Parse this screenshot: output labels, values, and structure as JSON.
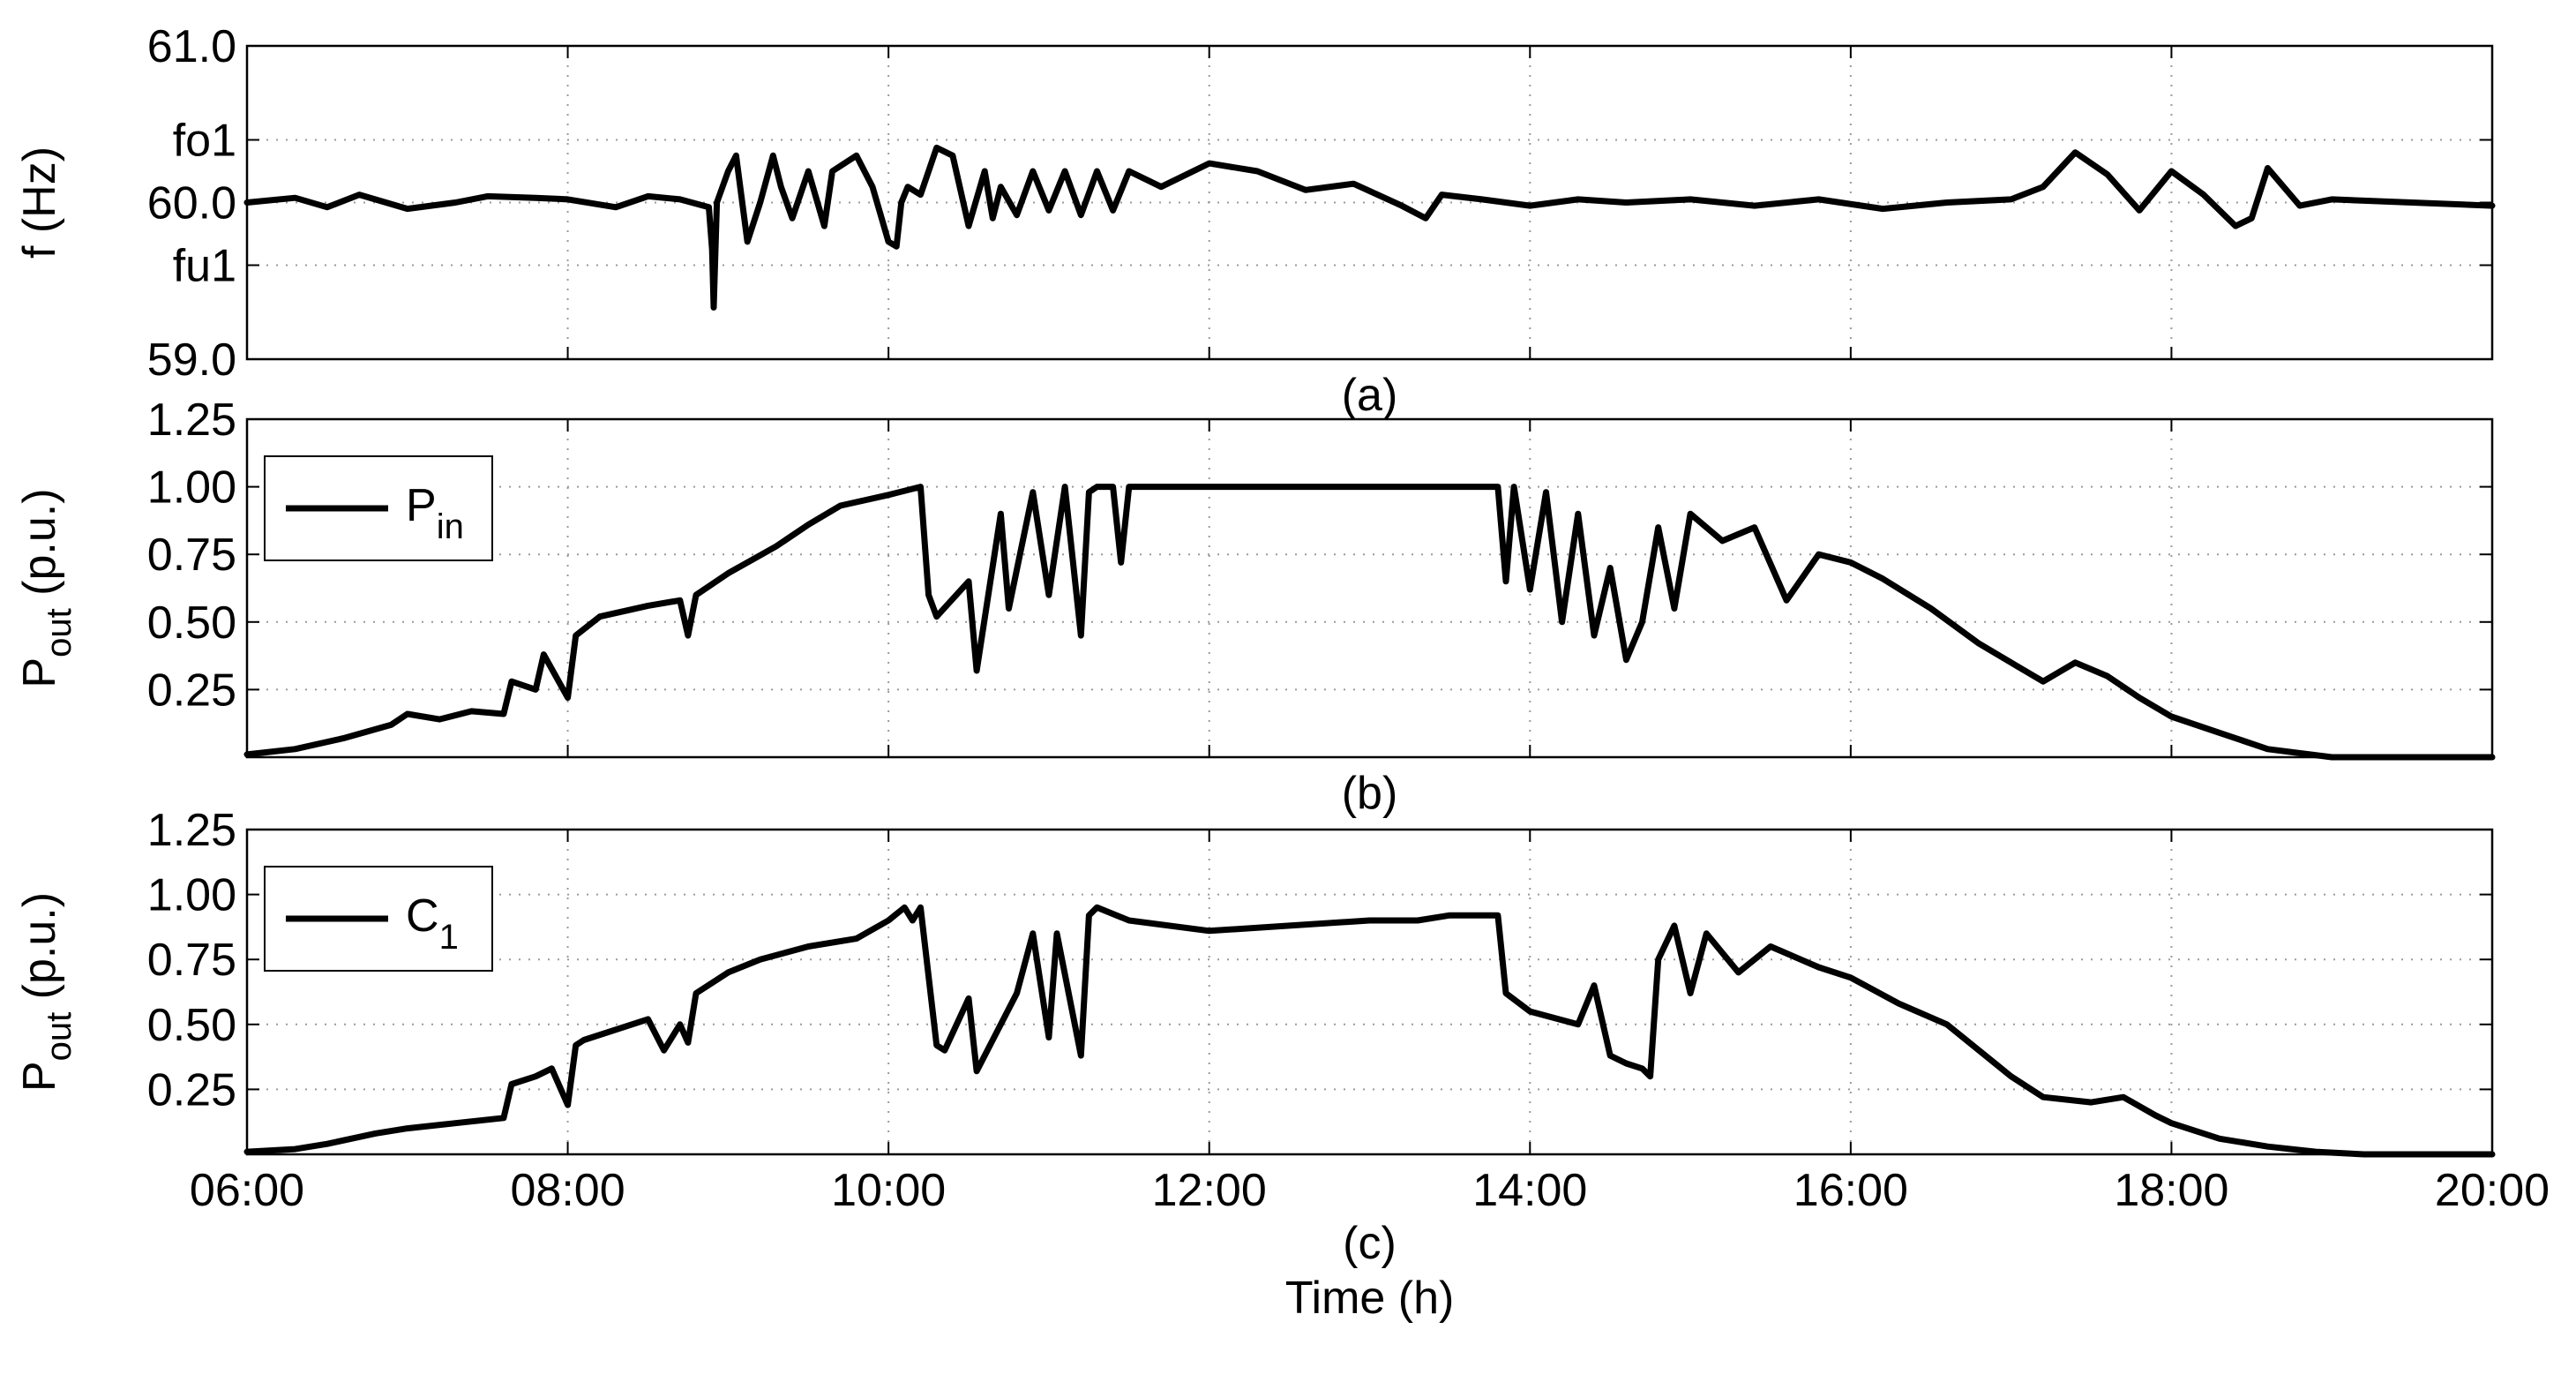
{
  "chart_data": [
    {
      "type": "line",
      "caption": "(a)",
      "ylabel": "f (Hz)",
      "ylim": [
        59.0,
        61.0
      ],
      "yticks": [
        59.0,
        59.6,
        60.0,
        60.4,
        61.0
      ],
      "ytick_labels": [
        "59.0",
        "fu1",
        "60.0",
        "fo1",
        "61.0"
      ],
      "xlim": [
        6,
        20
      ],
      "xtick_labels": [
        "06:00",
        "08:00",
        "10:00",
        "12:00",
        "14:00",
        "16:00",
        "18:00",
        "20:00"
      ],
      "grid": true,
      "series": [
        {
          "x": [
            6.0,
            6.3,
            6.5,
            6.7,
            7.0,
            7.3,
            7.5,
            7.8,
            8.0,
            8.3,
            8.5,
            8.7,
            8.88,
            8.9,
            8.91,
            8.93,
            9.0,
            9.05,
            9.12,
            9.2,
            9.28,
            9.33,
            9.4,
            9.5,
            9.6,
            9.65,
            9.8,
            9.9,
            10.0,
            10.05,
            10.08,
            10.12,
            10.2,
            10.3,
            10.4,
            10.5,
            10.6,
            10.65,
            10.7,
            10.8,
            10.9,
            11.0,
            11.1,
            11.2,
            11.3,
            11.4,
            11.5,
            11.7,
            12.0,
            12.3,
            12.6,
            12.9,
            13.2,
            13.35,
            13.45,
            13.7,
            14.0,
            14.3,
            14.6,
            15.0,
            15.4,
            15.8,
            16.2,
            16.6,
            17.0,
            17.2,
            17.4,
            17.6,
            17.8,
            18.0,
            18.2,
            18.4,
            18.5,
            18.6,
            18.8,
            19.0,
            19.5,
            20.0
          ],
          "y": [
            60.0,
            60.03,
            59.97,
            60.05,
            59.96,
            60.0,
            60.04,
            60.03,
            60.02,
            59.97,
            60.04,
            60.02,
            59.97,
            59.7,
            59.33,
            60.0,
            60.2,
            60.3,
            59.75,
            60.0,
            60.3,
            60.1,
            59.9,
            60.2,
            59.85,
            60.2,
            60.3,
            60.1,
            59.75,
            59.72,
            60.0,
            60.1,
            60.05,
            60.35,
            60.3,
            59.85,
            60.2,
            59.9,
            60.1,
            59.92,
            60.2,
            59.95,
            60.2,
            59.92,
            60.2,
            59.95,
            60.2,
            60.1,
            60.25,
            60.2,
            60.08,
            60.12,
            59.98,
            59.9,
            60.05,
            60.02,
            59.98,
            60.02,
            60.0,
            60.02,
            59.98,
            60.02,
            59.96,
            60.0,
            60.02,
            60.1,
            60.32,
            60.18,
            59.95,
            60.2,
            60.05,
            59.85,
            59.9,
            60.22,
            59.98,
            60.02,
            60.0,
            59.98
          ]
        }
      ]
    },
    {
      "type": "line",
      "caption": "(b)",
      "ylabel": "P",
      "ylabel_sub": "out",
      "ylabel_unit": "(p.u.)",
      "ylim": [
        0,
        1.25
      ],
      "yticks": [
        0.25,
        0.5,
        0.75,
        1.0,
        1.25
      ],
      "ytick_labels": [
        "0.25",
        "0.50",
        "0.75",
        "1.00",
        "1.25"
      ],
      "xlim": [
        6,
        20
      ],
      "xtick_labels": [
        "06:00",
        "08:00",
        "10:00",
        "12:00",
        "14:00",
        "16:00",
        "18:00",
        "20:00"
      ],
      "grid": true,
      "legend": {
        "label": "P",
        "sub": "in",
        "position": "top-left"
      },
      "series": [
        {
          "name": "P_in",
          "x": [
            6.0,
            6.3,
            6.6,
            6.9,
            7.0,
            7.2,
            7.4,
            7.6,
            7.65,
            7.8,
            7.85,
            8.0,
            8.05,
            8.2,
            8.5,
            8.7,
            8.75,
            8.8,
            9.0,
            9.3,
            9.5,
            9.7,
            10.0,
            10.2,
            10.25,
            10.3,
            10.5,
            10.55,
            10.7,
            10.75,
            10.9,
            11.0,
            11.1,
            11.2,
            11.25,
            11.3,
            11.4,
            11.45,
            11.5,
            12.0,
            12.5,
            13.0,
            13.5,
            13.8,
            13.85,
            13.9,
            14.0,
            14.1,
            14.2,
            14.3,
            14.4,
            14.5,
            14.6,
            14.7,
            14.8,
            14.9,
            15.0,
            15.2,
            15.4,
            15.6,
            15.8,
            16.0,
            16.2,
            16.5,
            16.8,
            17.0,
            17.2,
            17.4,
            17.6,
            17.8,
            18.0,
            18.3,
            18.6,
            19.0,
            20.0
          ],
          "y": [
            0.01,
            0.03,
            0.07,
            0.12,
            0.16,
            0.14,
            0.17,
            0.16,
            0.28,
            0.25,
            0.38,
            0.22,
            0.45,
            0.52,
            0.56,
            0.58,
            0.45,
            0.6,
            0.68,
            0.78,
            0.86,
            0.93,
            0.97,
            1.0,
            0.6,
            0.52,
            0.65,
            0.32,
            0.9,
            0.55,
            0.98,
            0.6,
            1.0,
            0.45,
            0.98,
            1.0,
            1.0,
            0.72,
            1.0,
            1.0,
            1.0,
            1.0,
            1.0,
            1.0,
            0.65,
            1.0,
            0.62,
            0.98,
            0.5,
            0.9,
            0.45,
            0.7,
            0.36,
            0.5,
            0.85,
            0.55,
            0.9,
            0.8,
            0.85,
            0.58,
            0.75,
            0.72,
            0.66,
            0.55,
            0.42,
            0.35,
            0.28,
            0.35,
            0.3,
            0.22,
            0.15,
            0.09,
            0.03,
            0.0,
            0.0
          ]
        }
      ]
    },
    {
      "type": "line",
      "caption": "(c)",
      "xlabel": "Time (h)",
      "ylabel": "P",
      "ylabel_sub": "out",
      "ylabel_unit": "(p.u.)",
      "ylim": [
        0,
        1.25
      ],
      "yticks": [
        0.25,
        0.5,
        0.75,
        1.0,
        1.25
      ],
      "ytick_labels": [
        "0.25",
        "0.50",
        "0.75",
        "1.00",
        "1.25"
      ],
      "xlim": [
        6,
        20
      ],
      "xtick_labels": [
        "06:00",
        "08:00",
        "10:00",
        "12:00",
        "14:00",
        "16:00",
        "18:00",
        "20:00"
      ],
      "grid": true,
      "legend": {
        "label": "C",
        "sub": "1",
        "position": "top-left"
      },
      "series": [
        {
          "name": "C_1",
          "x": [
            6.0,
            6.3,
            6.5,
            6.8,
            7.0,
            7.3,
            7.6,
            7.65,
            7.8,
            7.9,
            8.0,
            8.05,
            8.1,
            8.5,
            8.6,
            8.7,
            8.75,
            8.8,
            9.0,
            9.2,
            9.5,
            9.8,
            10.0,
            10.1,
            10.15,
            10.2,
            10.3,
            10.35,
            10.5,
            10.55,
            10.7,
            10.8,
            10.9,
            11.0,
            11.05,
            11.2,
            11.25,
            11.3,
            11.5,
            12.0,
            12.5,
            13.0,
            13.3,
            13.5,
            13.8,
            13.85,
            14.0,
            14.3,
            14.4,
            14.5,
            14.6,
            14.7,
            14.75,
            14.8,
            14.9,
            15.0,
            15.1,
            15.3,
            15.5,
            15.8,
            16.0,
            16.3,
            16.6,
            16.9,
            17.0,
            17.2,
            17.5,
            17.7,
            17.9,
            18.0,
            18.3,
            18.6,
            18.9,
            19.2,
            20.0
          ],
          "y": [
            0.01,
            0.02,
            0.04,
            0.08,
            0.1,
            0.12,
            0.14,
            0.27,
            0.3,
            0.33,
            0.19,
            0.42,
            0.44,
            0.52,
            0.4,
            0.5,
            0.43,
            0.62,
            0.7,
            0.75,
            0.8,
            0.83,
            0.9,
            0.95,
            0.9,
            0.95,
            0.42,
            0.4,
            0.6,
            0.32,
            0.5,
            0.62,
            0.85,
            0.45,
            0.85,
            0.38,
            0.92,
            0.95,
            0.9,
            0.86,
            0.88,
            0.9,
            0.9,
            0.92,
            0.92,
            0.62,
            0.55,
            0.5,
            0.65,
            0.38,
            0.35,
            0.33,
            0.3,
            0.75,
            0.88,
            0.62,
            0.85,
            0.7,
            0.8,
            0.72,
            0.68,
            0.58,
            0.5,
            0.35,
            0.3,
            0.22,
            0.2,
            0.22,
            0.15,
            0.12,
            0.06,
            0.03,
            0.01,
            0.0,
            0.0
          ]
        }
      ]
    }
  ]
}
